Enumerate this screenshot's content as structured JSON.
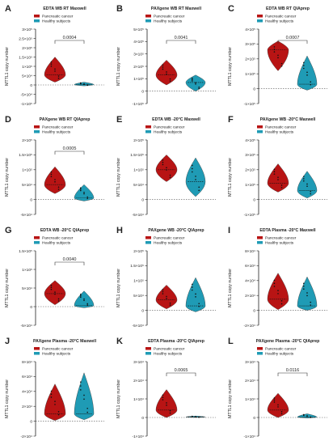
{
  "colors": {
    "pancreatic": "#b81414",
    "healthy": "#1f9bb5",
    "axis": "#222222",
    "dash": "#555555"
  },
  "legend": {
    "pancreatic": "Pancreatic cancer",
    "healthy": "Healthy subjects"
  },
  "ylabel": "MTTL1 copy number",
  "chart_data": [
    {
      "type": "violin",
      "panel": "A",
      "title": "EDTA WB RT Maxwell",
      "ylim": [
        -100000.0,
        300000.0
      ],
      "yticks": [
        "3×10⁵",
        "2.5×10⁵",
        "2×10⁵",
        "1.5×10⁵",
        "1×10⁵",
        "5×10⁴",
        "0",
        "-5×10⁴",
        "-1×10⁵"
      ],
      "categories": [
        "Pancreatic cancer",
        "Healthy subjects"
      ],
      "series": [
        {
          "name": "Pancreatic cancer",
          "min": 15000,
          "max": 150000,
          "median": 55000
        },
        {
          "name": "Healthy subjects",
          "min": -5000,
          "max": 15000,
          "median": 2000
        }
      ],
      "pvalue": "0.0004"
    },
    {
      "type": "violin",
      "panel": "B",
      "title": "PAXgene WB RT Maxwell",
      "ylim": [
        -100000.0,
        500000.0
      ],
      "yticks": [
        "5×10⁵",
        "4×10⁵",
        "3×10⁵",
        "2×10⁵",
        "1×10⁵",
        "0",
        "-1×10⁵"
      ],
      "categories": [
        "Pancreatic cancer",
        "Healthy subjects"
      ],
      "series": [
        {
          "name": "Pancreatic cancer",
          "min": 50000,
          "max": 250000,
          "median": 130000
        },
        {
          "name": "Healthy subjects",
          "min": 0,
          "max": 130000,
          "median": 70000
        }
      ],
      "pvalue": "0.0041"
    },
    {
      "type": "violin",
      "panel": "C",
      "title": "EDTA WB RT QIAprep",
      "ylim": [
        -100000.0,
        400000.0
      ],
      "yticks": [
        "4×10⁵",
        "3×10⁵",
        "2×10⁵",
        "1×10⁵",
        "0",
        "-1×10⁵"
      ],
      "categories": [
        "Pancreatic cancer",
        "Healthy subjects"
      ],
      "series": [
        {
          "name": "Pancreatic cancer",
          "min": 120000,
          "max": 320000,
          "median": 260000
        },
        {
          "name": "Healthy subjects",
          "min": -10000,
          "max": 220000,
          "median": 30000
        }
      ],
      "pvalue": "0.0007"
    },
    {
      "type": "violin",
      "panel": "D",
      "title": "PAXgene WB RT QIAprep",
      "ylim": [
        -50000.0,
        200000.0
      ],
      "yticks": [
        "2×10⁵",
        "1.5×10⁵",
        "1×10⁵",
        "5×10⁴",
        "0",
        "-5×10⁴"
      ],
      "categories": [
        "Pancreatic cancer",
        "Healthy subjects"
      ],
      "series": [
        {
          "name": "Pancreatic cancer",
          "min": 20000,
          "max": 110000,
          "median": 50000
        },
        {
          "name": "Healthy subjects",
          "min": -5000,
          "max": 50000,
          "median": 5000
        }
      ],
      "pvalue": "0.0005"
    },
    {
      "type": "violin",
      "panel": "E",
      "title": "EDTA WB -20°C Maxwell",
      "ylim": [
        -50000.0,
        200000.0
      ],
      "yticks": [
        "2×10⁵",
        "1.5×10⁵",
        "1×10⁵",
        "5×10⁴",
        "0",
        "-5×10⁴"
      ],
      "categories": [
        "Pancreatic cancer",
        "Healthy subjects"
      ],
      "series": [
        {
          "name": "Pancreatic cancer",
          "min": 60000,
          "max": 150000,
          "median": 100000
        },
        {
          "name": "Healthy subjects",
          "min": 10000,
          "max": 140000,
          "median": 60000
        }
      ],
      "pvalue": ""
    },
    {
      "type": "violin",
      "panel": "F",
      "title": "PAXgene WB -20°C Maxwell",
      "ylim": [
        -100000.0,
        400000.0
      ],
      "yticks": [
        "4×10⁵",
        "3×10⁵",
        "2×10⁵",
        "1×10⁵",
        "0",
        "-1×10⁵"
      ],
      "categories": [
        "Pancreatic cancer",
        "Healthy subjects"
      ],
      "series": [
        {
          "name": "Pancreatic cancer",
          "min": 50000,
          "max": 240000,
          "median": 110000
        },
        {
          "name": "Healthy subjects",
          "min": 10000,
          "max": 190000,
          "median": 60000
        }
      ],
      "pvalue": ""
    },
    {
      "type": "violin",
      "panel": "G",
      "title": "EDTA WB -20°C QIAprep",
      "ylim": [
        -50000.0,
        150000.0
      ],
      "yticks": [
        "1.5×10⁵",
        "1×10⁵",
        "5×10⁴",
        "0",
        "-5×10⁴"
      ],
      "categories": [
        "Pancreatic cancer",
        "Healthy subjects"
      ],
      "series": [
        {
          "name": "Pancreatic cancer",
          "min": 5000,
          "max": 70000,
          "median": 35000
        },
        {
          "name": "Healthy subjects",
          "min": -3000,
          "max": 42000,
          "median": 3000
        }
      ],
      "pvalue": "0.0040"
    },
    {
      "type": "violin",
      "panel": "H",
      "title": "PAXgene WB -20°C QIAprep",
      "ylim": [
        -50000.0,
        200000.0
      ],
      "yticks": [
        "2×10⁵",
        "1.5×10⁵",
        "1×10⁵",
        "5×10⁴",
        "0",
        "-5×10⁴"
      ],
      "categories": [
        "Pancreatic cancer",
        "Healthy subjects"
      ],
      "series": [
        {
          "name": "Pancreatic cancer",
          "min": 5000,
          "max": 85000,
          "median": 35000
        },
        {
          "name": "Healthy subjects",
          "min": -5000,
          "max": 110000,
          "median": 15000
        }
      ],
      "pvalue": ""
    },
    {
      "type": "violin",
      "panel": "I",
      "title": "EDTA Plasma -20°C Maxwell",
      "ylim": [
        -20000.0,
        80000.0
      ],
      "yticks": [
        "8×10⁴",
        "6×10⁴",
        "4×10⁴",
        "2×10⁴",
        "0",
        "-2×10⁴"
      ],
      "categories": [
        "Pancreatic cancer",
        "Healthy subjects"
      ],
      "series": [
        {
          "name": "Pancreatic cancer",
          "min": 1000,
          "max": 50000,
          "median": 15000
        },
        {
          "name": "Healthy subjects",
          "min": 0,
          "max": 45000,
          "median": 6000
        }
      ],
      "pvalue": ""
    },
    {
      "type": "violin",
      "panel": "J",
      "title": "PAXgene Plasma -20°C Maxwell",
      "ylim": [
        -20000.0,
        80000.0
      ],
      "yticks": [
        "8×10⁴",
        "6×10⁴",
        "4×10⁴",
        "2×10⁴",
        "0",
        "-2×10⁴"
      ],
      "categories": [
        "Pancreatic cancer",
        "Healthy subjects"
      ],
      "series": [
        {
          "name": "Pancreatic cancer",
          "min": 1000,
          "max": 50000,
          "median": 10000
        },
        {
          "name": "Healthy subjects",
          "min": 2000,
          "max": 65000,
          "median": 10000
        }
      ],
      "pvalue": ""
    },
    {
      "type": "violin",
      "panel": "K",
      "title": "EDTA Plasma -20°C QIAprep",
      "ylim": [
        -10000.0,
        30000.0
      ],
      "yticks": [
        "3×10⁴",
        "2×10⁴",
        "1×10⁴",
        "0",
        "-1×10⁴"
      ],
      "categories": [
        "Pancreatic cancer",
        "Healthy subjects"
      ],
      "series": [
        {
          "name": "Pancreatic cancer",
          "min": 0,
          "max": 15000,
          "median": 4000
        },
        {
          "name": "Healthy subjects",
          "min": 0,
          "max": 800,
          "median": 300
        }
      ],
      "pvalue": "0.0065"
    },
    {
      "type": "violin",
      "panel": "L",
      "title": "PAXgene Plasma -20°C QIAprep",
      "ylim": [
        -10000.0,
        30000.0
      ],
      "yticks": [
        "3×10⁴",
        "2×10⁴",
        "1×10⁴",
        "0",
        "-1×10⁴"
      ],
      "categories": [
        "Pancreatic cancer",
        "Healthy subjects"
      ],
      "series": [
        {
          "name": "Pancreatic cancer",
          "min": 0,
          "max": 13000,
          "median": 4000
        },
        {
          "name": "Healthy subjects",
          "min": -300,
          "max": 2000,
          "median": 200
        }
      ],
      "pvalue": "0.0116"
    }
  ]
}
